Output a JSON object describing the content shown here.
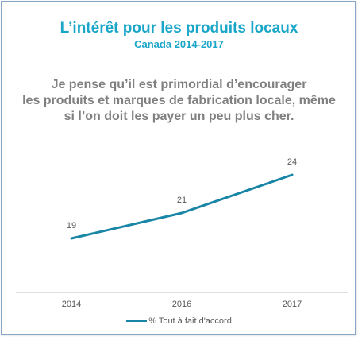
{
  "header": {
    "title": "L’intérêt pour les produits locaux",
    "subtitle": "Canada 2014-2017"
  },
  "statement_lines": [
    "Je pense qu’il est primordial d’encourager",
    "les produits et marques de fabrication locale, même",
    "si l’on doit les payer un peu plus cher."
  ],
  "colors": {
    "title": "#1aa6c8",
    "statement": "#808080",
    "series_line": "#1a86a6",
    "axis": "#bfbfbf",
    "label": "#595959"
  },
  "chart_data": {
    "type": "line",
    "categories": [
      "2014",
      "2016",
      "2017"
    ],
    "series": [
      {
        "name": "% Tout à fait d'accord",
        "values": [
          19,
          21,
          24
        ]
      }
    ],
    "data_labels": [
      "19",
      "21",
      "24"
    ],
    "grid": false,
    "legend_position": "bottom"
  }
}
